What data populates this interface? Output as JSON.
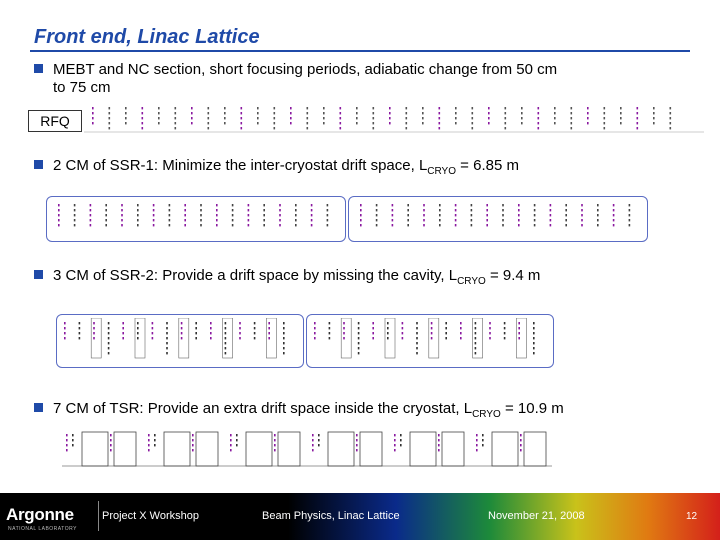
{
  "title": "Front end, Linac Lattice",
  "bullets": [
    {
      "text": "MEBT and NC section, short focusing periods, adiabatic change from 50 cm",
      "text2": "to 75 cm"
    },
    {
      "pre": "2 CM of SSR-1: Minimize the inter-cryostat drift space, L",
      "sub": "CRYO",
      "post": " = 6.85 m"
    },
    {
      "pre": "3 CM of SSR-2: Provide a drift space by missing the cavity, L",
      "sub": "CRYO",
      "post": " = 9.4 m"
    },
    {
      "pre": "7 CM of TSR: Provide an extra drift space inside the cryostat, L",
      "sub": "CRYO",
      "post": " = 10.9 m"
    }
  ],
  "rfq_label": "RFQ",
  "footer": {
    "logo": "Argonne",
    "logo_sub": "NATIONAL LABORATORY",
    "workshop": "Project X Workshop",
    "topic": "Beam Physics, Linac Lattice",
    "date": "November 21, 2008",
    "page": "12"
  },
  "colors": {
    "accent": "#1f4aa8",
    "cryostat": "#5a6cc4",
    "element_label": "#8a1aa0"
  }
}
